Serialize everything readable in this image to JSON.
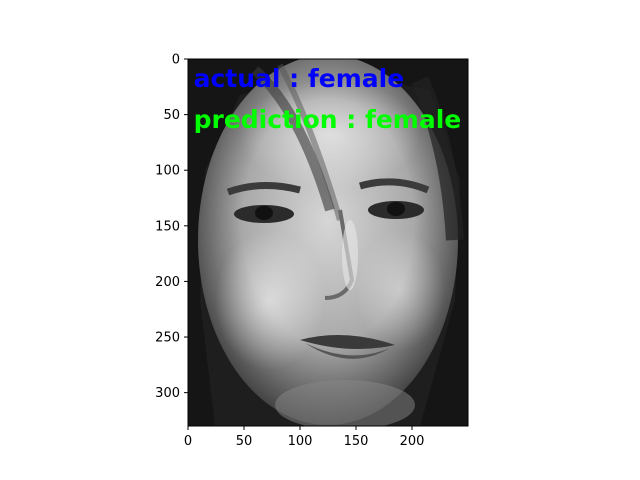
{
  "chart_data": {
    "type": "image",
    "title": "",
    "xlabel": "",
    "ylabel": "",
    "xlim": [
      0,
      250
    ],
    "ylim": [
      330,
      0
    ],
    "xticks": [
      0,
      50,
      100,
      150,
      200
    ],
    "yticks": [
      0,
      50,
      100,
      150,
      200,
      250,
      300
    ],
    "image_description": "grayscale face photograph",
    "annotations": [
      {
        "name": "actual-label",
        "text": "actual : female",
        "color": "#0000ff",
        "x": 5,
        "y": 25
      },
      {
        "name": "prediction-label",
        "text": "prediction : female",
        "color": "#00ff00",
        "x": 5,
        "y": 62
      }
    ]
  }
}
